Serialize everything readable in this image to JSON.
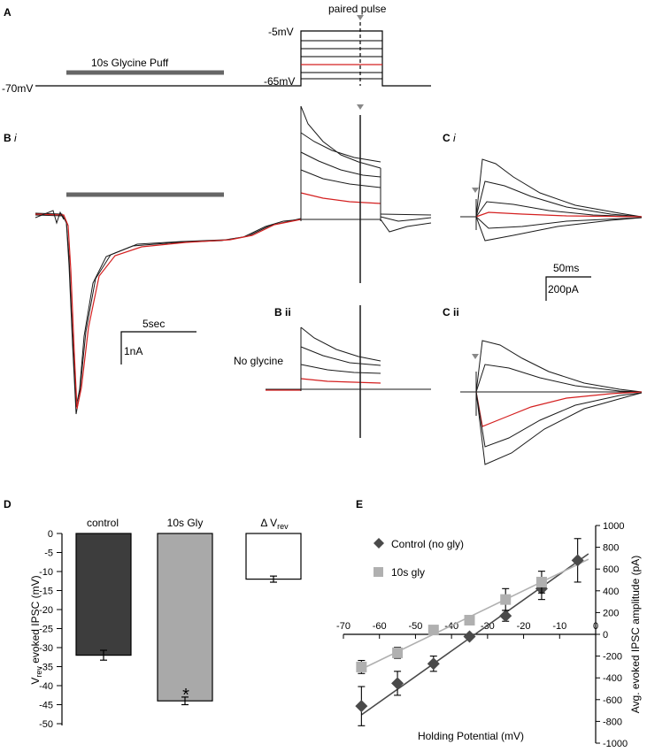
{
  "panels": {
    "a": "A",
    "b": "B",
    "b_i": "i",
    "b_ii": "B ii",
    "c": "C",
    "c_i": "i",
    "c_ii": "C ii",
    "d": "D",
    "e": "E"
  },
  "protocol": {
    "puff_label": "10s Glycine Puff",
    "paired_pulse_label": "paired pulse",
    "holding_label": "-70mV",
    "step_top_label": "-5mV",
    "step_bottom_label": "-65mV"
  },
  "traces": {
    "scale_b_time": "5sec",
    "scale_b_amp": "1nA",
    "scale_c_time": "50ms",
    "scale_c_amp": "200pA",
    "no_glycine_label": "No glycine"
  },
  "colors": {
    "control_bar": "#3d3d3d",
    "gly_bar": "#a9a9a9",
    "delta_bar": "#ffffff",
    "control_series": "#4a4a4a",
    "gly_series": "#b0b0b0",
    "highlight_trace": "#d42020"
  },
  "chart_data": [
    {
      "type": "bar",
      "title": "",
      "categories": [
        "control",
        "10s Gly",
        "Δ Vrev"
      ],
      "category_labels": {
        "control": "control",
        "gly": "10s Gly",
        "delta_prefix": "Δ V",
        "delta_sub": "rev"
      },
      "values": [
        -32,
        -44,
        -12
      ],
      "errors": [
        1.3,
        1.0,
        0.8
      ],
      "ylabel": {
        "prefix": "V",
        "sub": "rev",
        "suffix": " evoked IPSC (mV)"
      },
      "ylim": [
        -50,
        0
      ],
      "yticks": [
        "0",
        "-5",
        "-10",
        "-15",
        "-20",
        "-25",
        "-30",
        "-35",
        "-40",
        "-45",
        "-50"
      ],
      "annotation": "*"
    },
    {
      "type": "scatter",
      "title": "",
      "xlabel": "Holding Potential (mV)",
      "ylabel": "Avg. evoked IPSC amplitude (pA)",
      "xlim": [
        -70,
        0
      ],
      "ylim": [
        -1000,
        1000
      ],
      "xticks": [
        "-70",
        "-60",
        "-50",
        "-40",
        "-30",
        "-20",
        "-10",
        "0"
      ],
      "yticks": [
        "1000",
        "800",
        "600",
        "400",
        "200",
        "0",
        "-200",
        "-400",
        "-600",
        "-800",
        "-1000"
      ],
      "series": [
        {
          "name": "Control (no gly)",
          "marker": "diamond",
          "x": [
            -65,
            -55,
            -45,
            -35,
            -25,
            -15,
            -5
          ],
          "y": [
            -660,
            -450,
            -270,
            -20,
            170,
            420,
            680
          ],
          "err": [
            180,
            110,
            70,
            20,
            50,
            100,
            200
          ],
          "fit_x": [
            -65,
            -2
          ],
          "fit_y": [
            -740,
            740
          ]
        },
        {
          "name": "10s gly",
          "marker": "square",
          "x": [
            -65,
            -55,
            -45,
            -35,
            -25,
            -15
          ],
          "y": [
            -300,
            -170,
            40,
            130,
            320,
            480
          ],
          "err": [
            60,
            50,
            20,
            30,
            100,
            100
          ],
          "fit_x": [
            -65,
            -2
          ],
          "fit_y": [
            -320,
            690
          ]
        }
      ]
    }
  ]
}
